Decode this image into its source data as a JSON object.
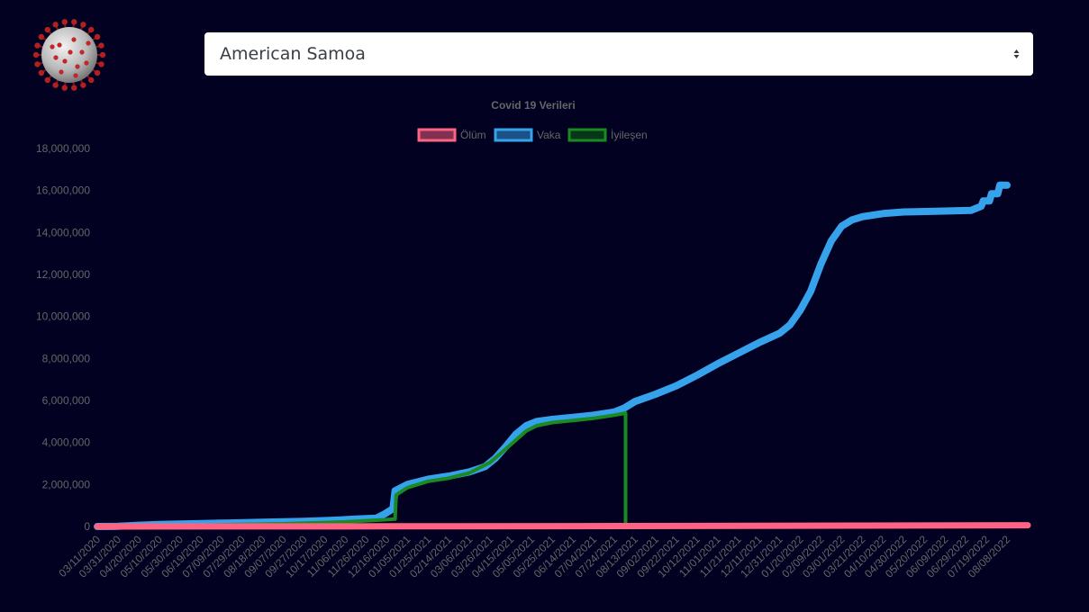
{
  "header": {
    "logo_icon": "coronavirus-icon",
    "country_select": {
      "value": "American Samoa",
      "arrow_icon": "select-updown-arrows-icon"
    }
  },
  "colors": {
    "background": "#020122",
    "death": "#ff6384",
    "death_fill": "rgba(255,99,132,0.5)",
    "cases": "#36a2eb",
    "cases_fill": "rgba(54,162,235,0.5)",
    "recovered": "#1a8a22",
    "recovered_fill": "rgba(14,90,20,0.6)"
  },
  "chart_data": {
    "type": "line",
    "title": "Covid 19 Verileri",
    "legend_position": "top",
    "grid": false,
    "ylim": [
      0,
      18000000
    ],
    "y_ticks": [
      "0",
      "2,000,000",
      "4,000,000",
      "6,000,000",
      "8,000,000",
      "10,000,000",
      "12,000,000",
      "14,000,000",
      "16,000,000",
      "18,000,000"
    ],
    "x_range": [
      "2020-03-11",
      "2022-08-28"
    ],
    "x_tick_labels": [
      "03/11/2020",
      "03/31/2020",
      "04/20/2020",
      "05/10/2020",
      "05/30/2020",
      "06/19/2020",
      "07/09/2020",
      "07/29/2020",
      "08/18/2020",
      "09/07/2020",
      "09/27/2020",
      "10/17/2020",
      "11/06/2020",
      "11/26/2020",
      "12/16/2020",
      "01/05/2021",
      "01/25/2021",
      "02/14/2021",
      "03/06/2021",
      "03/26/2021",
      "04/15/2021",
      "05/05/2021",
      "05/25/2021",
      "06/14/2021",
      "07/04/2021",
      "07/24/2021",
      "08/13/2021",
      "09/02/2021",
      "09/22/2021",
      "10/12/2021",
      "11/01/2021",
      "11/21/2021",
      "12/11/2021",
      "12/31/2021",
      "01/20/2022",
      "02/09/2022",
      "03/01/2022",
      "03/21/2022",
      "04/10/2022",
      "04/30/2022",
      "05/20/2022",
      "06/09/2022",
      "06/29/2022",
      "07/19/2022",
      "08/08/2022"
    ],
    "series": [
      {
        "name": "Ölüm",
        "color_key": "death",
        "points": [
          [
            "2020-03-11",
            0
          ],
          [
            "2020-12-16",
            10000
          ],
          [
            "2021-08-04",
            20000
          ],
          [
            "2022-08-28",
            60000
          ]
        ]
      },
      {
        "name": "Vaka",
        "color_key": "cases",
        "points": [
          [
            "2020-03-11",
            0
          ],
          [
            "2020-03-31",
            10000
          ],
          [
            "2020-04-20",
            60000
          ],
          [
            "2020-05-10",
            100000
          ],
          [
            "2020-06-09",
            130000
          ],
          [
            "2020-07-09",
            160000
          ],
          [
            "2020-08-18",
            200000
          ],
          [
            "2020-09-27",
            250000
          ],
          [
            "2020-10-27",
            300000
          ],
          [
            "2020-11-16",
            350000
          ],
          [
            "2020-12-06",
            400000
          ],
          [
            "2020-12-14",
            600000
          ],
          [
            "2020-12-22",
            850000
          ],
          [
            "2020-12-24",
            1700000
          ],
          [
            "2021-01-05",
            2000000
          ],
          [
            "2021-01-25",
            2250000
          ],
          [
            "2021-02-14",
            2400000
          ],
          [
            "2021-03-06",
            2600000
          ],
          [
            "2021-03-21",
            2850000
          ],
          [
            "2021-03-31",
            3250000
          ],
          [
            "2021-04-10",
            3800000
          ],
          [
            "2021-04-20",
            4400000
          ],
          [
            "2021-04-30",
            4800000
          ],
          [
            "2021-05-10",
            5000000
          ],
          [
            "2021-05-25",
            5100000
          ],
          [
            "2021-06-14",
            5200000
          ],
          [
            "2021-07-04",
            5300000
          ],
          [
            "2021-07-24",
            5450000
          ],
          [
            "2021-08-03",
            5650000
          ],
          [
            "2021-08-13",
            5950000
          ],
          [
            "2021-09-02",
            6300000
          ],
          [
            "2021-09-22",
            6700000
          ],
          [
            "2021-10-12",
            7200000
          ],
          [
            "2021-11-01",
            7750000
          ],
          [
            "2021-11-21",
            8250000
          ],
          [
            "2021-12-11",
            8750000
          ],
          [
            "2021-12-31",
            9200000
          ],
          [
            "2022-01-10",
            9600000
          ],
          [
            "2022-01-20",
            10300000
          ],
          [
            "2022-01-30",
            11200000
          ],
          [
            "2022-02-09",
            12500000
          ],
          [
            "2022-02-19",
            13600000
          ],
          [
            "2022-03-01",
            14300000
          ],
          [
            "2022-03-11",
            14600000
          ],
          [
            "2022-03-21",
            14750000
          ],
          [
            "2022-04-10",
            14900000
          ],
          [
            "2022-04-30",
            14980000
          ],
          [
            "2022-06-09",
            15020000
          ],
          [
            "2022-07-04",
            15050000
          ],
          [
            "2022-07-09",
            15150000
          ],
          [
            "2022-07-14",
            15250000
          ],
          [
            "2022-07-16",
            15500000
          ],
          [
            "2022-07-22",
            15500000
          ],
          [
            "2022-07-24",
            15850000
          ],
          [
            "2022-07-30",
            15850000
          ],
          [
            "2022-08-01",
            16250000
          ],
          [
            "2022-08-08",
            16250000
          ]
        ]
      },
      {
        "name": "İyileşen",
        "color_key": "recovered",
        "points": [
          [
            "2020-03-11",
            0
          ],
          [
            "2020-06-09",
            50000
          ],
          [
            "2020-09-07",
            130000
          ],
          [
            "2020-11-06",
            220000
          ],
          [
            "2020-12-06",
            300000
          ],
          [
            "2020-12-24",
            350000
          ],
          [
            "2020-12-25",
            1500000
          ],
          [
            "2021-01-05",
            1850000
          ],
          [
            "2021-01-25",
            2150000
          ],
          [
            "2021-02-14",
            2300000
          ],
          [
            "2021-03-06",
            2550000
          ],
          [
            "2021-03-26",
            3050000
          ],
          [
            "2021-04-15",
            3900000
          ],
          [
            "2021-04-30",
            4550000
          ],
          [
            "2021-05-10",
            4800000
          ],
          [
            "2021-05-25",
            4950000
          ],
          [
            "2021-06-14",
            5050000
          ],
          [
            "2021-07-04",
            5150000
          ],
          [
            "2021-07-24",
            5300000
          ],
          [
            "2021-08-04",
            5400000
          ],
          [
            "2021-08-04",
            0
          ],
          [
            "2022-08-28",
            0
          ]
        ]
      }
    ]
  }
}
